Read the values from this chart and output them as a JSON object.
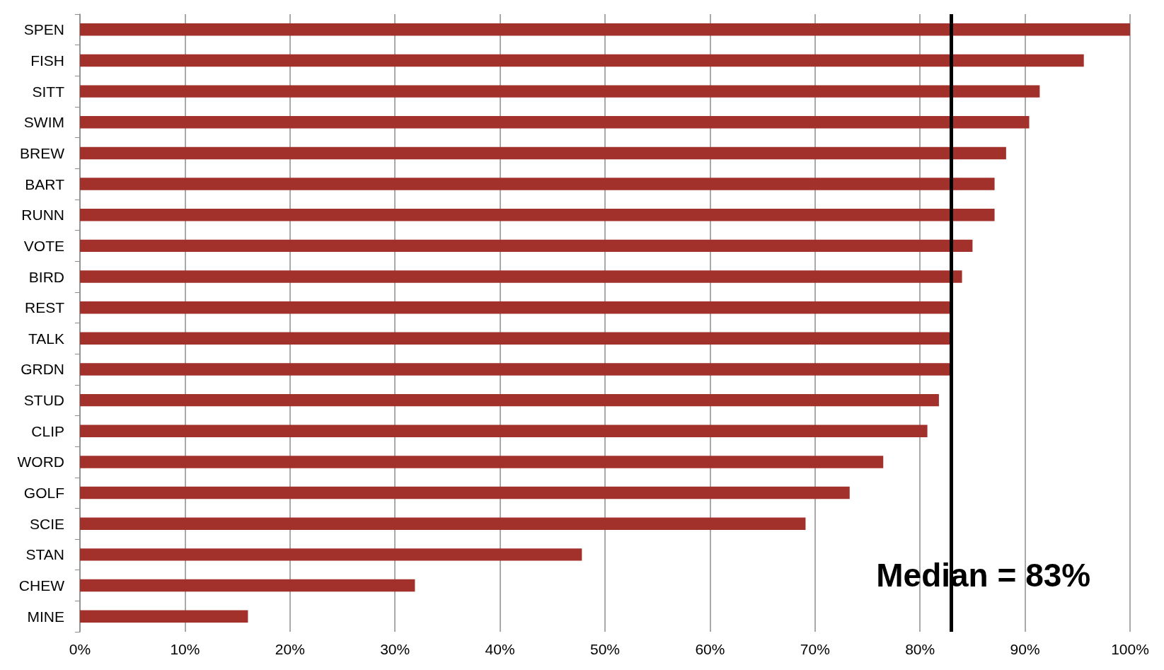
{
  "chart_data": {
    "type": "bar",
    "orientation": "horizontal",
    "categories": [
      "SPEN",
      "FISH",
      "SITT",
      "SWIM",
      "BREW",
      "BART",
      "RUNN",
      "VOTE",
      "BIRD",
      "REST",
      "TALK",
      "GRDN",
      "STUD",
      "CLIP",
      "WORD",
      "GOLF",
      "SCIE",
      "STAN",
      "CHEW",
      "MINE"
    ],
    "values": [
      100,
      95.6,
      91.4,
      90.4,
      88.2,
      87.1,
      87.1,
      85.0,
      84.0,
      82.9,
      82.9,
      82.9,
      81.8,
      80.7,
      76.5,
      73.3,
      69.1,
      47.8,
      31.9,
      16.0
    ],
    "color": "#a2312c",
    "xlim": [
      0,
      100
    ],
    "xticks": [
      {
        "value": 0,
        "label": "0%"
      },
      {
        "value": 10,
        "label": "10%"
      },
      {
        "value": 20,
        "label": "20%"
      },
      {
        "value": 30,
        "label": "30%"
      },
      {
        "value": 40,
        "label": "40%"
      },
      {
        "value": 50,
        "label": "50%"
      },
      {
        "value": 60,
        "label": "60%"
      },
      {
        "value": 70,
        "label": "70%"
      },
      {
        "value": 80,
        "label": "80%"
      },
      {
        "value": 90,
        "label": "90%"
      },
      {
        "value": 100,
        "label": "100%"
      }
    ],
    "grid": "x",
    "ref_lines": [
      {
        "axis": "x",
        "value": 83,
        "label": "Median = 83%",
        "color": "#000000"
      }
    ]
  }
}
